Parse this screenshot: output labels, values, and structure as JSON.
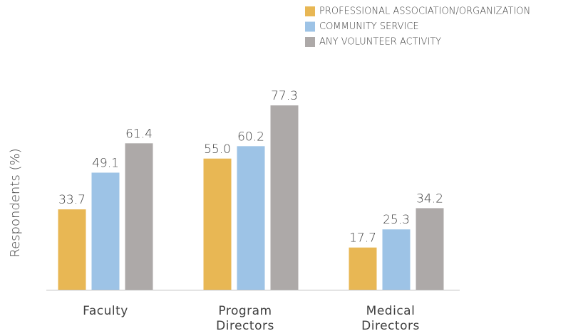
{
  "chart_data": {
    "type": "bar",
    "y_label": "Respondents (%)",
    "categories": [
      "Faculty",
      "Program Directors",
      "Medical Directors"
    ],
    "series": [
      {
        "name": "PROFESSIONAL ASSOCIATION/ORGANIZATION",
        "color": "#e8b754",
        "values": [
          33.7,
          55.0,
          17.7
        ],
        "value_labels": [
          "33.7",
          "55.0",
          "17.7"
        ]
      },
      {
        "name": "COMMUNITY SERVICE",
        "color": "#9dc3e6",
        "values": [
          49.1,
          60.2,
          25.3
        ],
        "value_labels": [
          "49.1",
          "60.2",
          "25.3"
        ]
      },
      {
        "name": "ANY VOLUNTEER ACTIVITY",
        "color": "#ada9a8",
        "values": [
          61.4,
          77.3,
          34.2
        ],
        "value_labels": [
          "61.4",
          "77.3",
          "34.2"
        ]
      }
    ],
    "ylim": [
      0,
      80
    ],
    "legend": "top-right"
  }
}
